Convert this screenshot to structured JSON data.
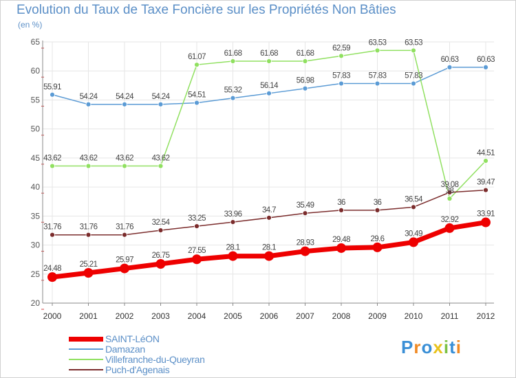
{
  "title": "Evolution du Taux de Taxe Foncière sur les Propriétés Non Bâties",
  "subtitle": "(en %)",
  "logo": {
    "text": "Proxiti",
    "letters": [
      {
        "char": "P",
        "color": "#3a8fd6"
      },
      {
        "char": "r",
        "color": "#f08a24"
      },
      {
        "char": "o",
        "color": "#3a8fd6"
      },
      {
        "char": "x",
        "color": "#e8c21c"
      },
      {
        "char": "i",
        "color": "#7bc043"
      },
      {
        "char": "t",
        "color": "#3a8fd6"
      },
      {
        "char": "i",
        "color": "#f08a24"
      }
    ]
  },
  "chart_data": {
    "type": "line",
    "title": "Evolution du Taux de Taxe Foncière sur les Propriétés Non Bâties",
    "ylabel": "(en %)",
    "xlabel": "",
    "ylim": [
      20,
      65
    ],
    "yticks": [
      20,
      25,
      30,
      35,
      40,
      45,
      50,
      55,
      60,
      65
    ],
    "grid": true,
    "legend_position": "bottom-left",
    "categories": [
      "2000",
      "2001",
      "2002",
      "2003",
      "2004",
      "2005",
      "2006",
      "2007",
      "2008",
      "2009",
      "2010",
      "2011",
      "2012"
    ],
    "series": [
      {
        "name": "SAINT-LéON",
        "color": "#ee0000",
        "values": [
          24.48,
          25.21,
          25.97,
          26.75,
          27.55,
          28.1,
          28.1,
          28.93,
          29.48,
          29.6,
          30.49,
          32.92,
          33.91
        ],
        "labels": [
          "24.48",
          "25.21",
          "25.97",
          "26.75",
          "27.55",
          "28.1",
          "28.1",
          "28.93",
          "29.48",
          "29.6",
          "30.49",
          "32.92",
          "33.91"
        ]
      },
      {
        "name": "Damazan",
        "color": "#5b9bd5",
        "values": [
          55.91,
          54.24,
          54.24,
          54.24,
          54.51,
          55.32,
          56.14,
          56.98,
          57.83,
          57.83,
          57.83,
          60.63,
          60.63
        ],
        "labels": [
          "55.91",
          "54.24",
          "54.24",
          "54.24",
          "54.51",
          "55.32",
          "56.14",
          "56.98",
          "57.83",
          "57.83",
          "57.83",
          "60.63",
          "60.63"
        ]
      },
      {
        "name": "Villefranche-du-Queyran",
        "color": "#90e060",
        "values": [
          43.62,
          43.62,
          43.62,
          43.62,
          61.07,
          61.68,
          61.68,
          61.68,
          62.59,
          63.53,
          63.53,
          38,
          44.51
        ],
        "labels": [
          "43.62",
          "43.62",
          "43.62",
          "43.62",
          "61.07",
          "61.68",
          "61.68",
          "61.68",
          "62.59",
          "63.53",
          "63.53",
          "38",
          "44.51"
        ]
      },
      {
        "name": "Puch-d'Agenais",
        "color": "#7b2c2c",
        "values": [
          31.76,
          31.76,
          31.76,
          32.54,
          33.25,
          33.96,
          34.7,
          35.49,
          36,
          36,
          36.54,
          39.08,
          39.47
        ],
        "labels": [
          "31.76",
          "31.76",
          "31.76",
          "32.54",
          "33.25",
          "33.96",
          "34.7",
          "35.49",
          "36",
          "36",
          "36.54",
          "39.08",
          "39.47"
        ]
      }
    ]
  }
}
